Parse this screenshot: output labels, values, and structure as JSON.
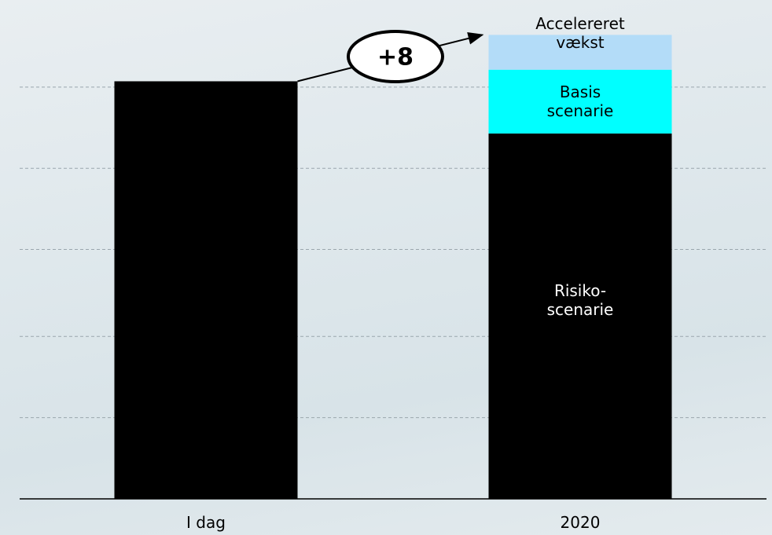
{
  "chart_data": {
    "type": "stacked_bar",
    "categories": [
      "I dag",
      "2020"
    ],
    "series": [
      {
        "name": "Risiko-scenarie",
        "color": "#000000",
        "values": [
          72,
          63
        ]
      },
      {
        "name": "Basis scenarie",
        "color": "#00ffff",
        "values": [
          null,
          11
        ]
      },
      {
        "name": "Accelereret vækst",
        "color": "#b3dcf8",
        "values": [
          null,
          6
        ]
      }
    ],
    "annotation": "+8",
    "ylim": [
      0,
      85
    ],
    "yticks": [
      14,
      28,
      43,
      57,
      71
    ],
    "grid": true
  }
}
